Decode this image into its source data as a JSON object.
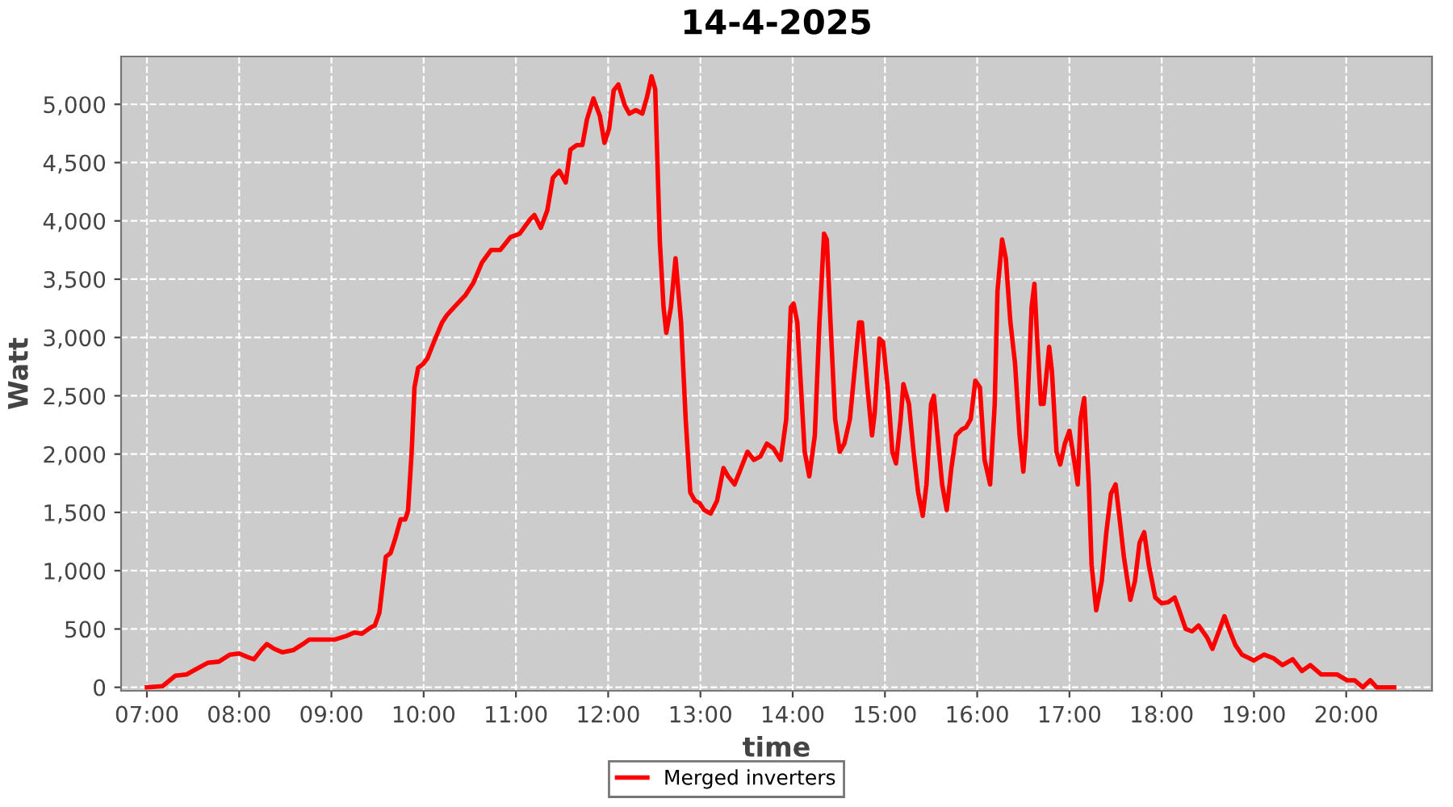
{
  "chart_data": {
    "type": "line",
    "title": "14-4-2025",
    "xlabel": "time",
    "ylabel": "Watt",
    "xlim": [
      6.72,
      20.93
    ],
    "ylim": [
      -30,
      5410
    ],
    "xticks": [
      {
        "value": 7,
        "label": "07:00"
      },
      {
        "value": 8,
        "label": "08:00"
      },
      {
        "value": 9,
        "label": "09:00"
      },
      {
        "value": 10,
        "label": "10:00"
      },
      {
        "value": 11,
        "label": "11:00"
      },
      {
        "value": 12,
        "label": "12:00"
      },
      {
        "value": 13,
        "label": "13:00"
      },
      {
        "value": 14,
        "label": "14:00"
      },
      {
        "value": 15,
        "label": "15:00"
      },
      {
        "value": 16,
        "label": "16:00"
      },
      {
        "value": 17,
        "label": "17:00"
      },
      {
        "value": 18,
        "label": "18:00"
      },
      {
        "value": 19,
        "label": "19:00"
      },
      {
        "value": 20,
        "label": "20:00"
      }
    ],
    "yticks": [
      0,
      500,
      {
        "value": 1000,
        "label": "1,000"
      },
      {
        "value": 1500,
        "label": "1,500"
      },
      {
        "value": 2000,
        "label": "2,000"
      },
      {
        "value": 2500,
        "label": "2,500"
      },
      {
        "value": 3000,
        "label": "3,000"
      },
      {
        "value": 3500,
        "label": "3,500"
      },
      {
        "value": 4000,
        "label": "4,000"
      },
      {
        "value": 4500,
        "label": "4,500"
      },
      {
        "value": 5000,
        "label": "5,000"
      }
    ],
    "grid": true,
    "legend": "bottom",
    "marker": "none",
    "line_style": "solid",
    "series": [
      {
        "name": "Merged inverters",
        "color": "#ff0000",
        "x": [
          7.0,
          7.17,
          7.31,
          7.43,
          7.52,
          7.66,
          7.78,
          7.9,
          8.0,
          8.09,
          8.16,
          8.24,
          8.3,
          8.38,
          8.47,
          8.59,
          8.69,
          8.76,
          8.9,
          9.04,
          9.16,
          9.25,
          9.33,
          9.42,
          9.47,
          9.52,
          9.56,
          9.59,
          9.64,
          9.69,
          9.75,
          9.8,
          9.83,
          9.87,
          9.9,
          9.94,
          9.99,
          10.04,
          10.11,
          10.2,
          10.25,
          10.33,
          10.45,
          10.54,
          10.63,
          10.73,
          10.83,
          10.94,
          11.04,
          11.15,
          11.2,
          11.27,
          11.34,
          11.4,
          11.47,
          11.54,
          11.59,
          11.66,
          11.72,
          11.77,
          11.84,
          11.91,
          11.96,
          12.01,
          12.06,
          12.11,
          12.18,
          12.23,
          12.3,
          12.37,
          12.42,
          12.47,
          12.51,
          12.56,
          12.6,
          12.63,
          12.68,
          12.73,
          12.79,
          12.84,
          12.89,
          12.94,
          12.99,
          13.04,
          13.11,
          13.18,
          13.25,
          13.3,
          13.37,
          13.44,
          13.51,
          13.58,
          13.65,
          13.72,
          13.79,
          13.87,
          13.93,
          13.98,
          14.01,
          14.05,
          14.08,
          14.13,
          14.18,
          14.24,
          14.29,
          14.34,
          14.37,
          14.41,
          14.46,
          14.51,
          14.56,
          14.62,
          14.67,
          14.72,
          14.75,
          14.81,
          14.86,
          14.89,
          14.94,
          14.98,
          15.03,
          15.08,
          15.12,
          15.17,
          15.2,
          15.26,
          15.31,
          15.36,
          15.41,
          15.45,
          15.5,
          15.53,
          15.57,
          15.62,
          15.67,
          15.72,
          15.77,
          15.83,
          15.88,
          15.93,
          15.98,
          16.03,
          16.08,
          16.14,
          16.19,
          16.22,
          16.27,
          16.31,
          16.36,
          16.41,
          16.46,
          16.5,
          16.53,
          16.59,
          16.62,
          16.65,
          16.69,
          16.72,
          16.78,
          16.81,
          16.86,
          16.9,
          16.95,
          17.0,
          17.05,
          17.09,
          17.12,
          17.16,
          17.21,
          17.24,
          17.29,
          17.35,
          17.4,
          17.45,
          17.5,
          17.54,
          17.59,
          17.66,
          17.71,
          17.76,
          17.81,
          17.86,
          17.93,
          18.0,
          18.07,
          18.14,
          18.19,
          18.26,
          18.33,
          18.4,
          18.49,
          18.55,
          18.62,
          18.68,
          18.73,
          18.8,
          18.87,
          19.0,
          19.11,
          19.21,
          19.31,
          19.42,
          19.52,
          19.61,
          19.73,
          19.9,
          20.01,
          20.09,
          20.18,
          20.26,
          20.33,
          20.52
        ],
        "values": [
          0,
          10,
          100,
          110,
          150,
          210,
          220,
          280,
          290,
          260,
          240,
          320,
          370,
          330,
          300,
          320,
          370,
          410,
          410,
          410,
          440,
          470,
          460,
          510,
          530,
          640,
          910,
          1120,
          1150,
          1270,
          1440,
          1440,
          1510,
          2020,
          2570,
          2740,
          2770,
          2820,
          2960,
          3130,
          3190,
          3260,
          3360,
          3470,
          3640,
          3750,
          3750,
          3860,
          3890,
          4010,
          4050,
          3940,
          4090,
          4370,
          4430,
          4330,
          4610,
          4650,
          4650,
          4870,
          5050,
          4900,
          4670,
          4790,
          5120,
          5170,
          4990,
          4920,
          4950,
          4920,
          5060,
          5240,
          5130,
          3820,
          3260,
          3040,
          3260,
          3680,
          3130,
          2300,
          1670,
          1600,
          1580,
          1520,
          1490,
          1600,
          1880,
          1810,
          1740,
          1880,
          2020,
          1950,
          1980,
          2090,
          2050,
          1950,
          2300,
          3260,
          3290,
          3130,
          2710,
          2020,
          1810,
          2160,
          3130,
          3890,
          3840,
          3130,
          2300,
          2020,
          2090,
          2300,
          2710,
          3130,
          3130,
          2570,
          2160,
          2360,
          2990,
          2960,
          2570,
          2020,
          1920,
          2300,
          2600,
          2430,
          2020,
          1670,
          1470,
          1740,
          2430,
          2500,
          2160,
          1740,
          1520,
          1880,
          2160,
          2210,
          2230,
          2300,
          2630,
          2570,
          1950,
          1740,
          2430,
          3400,
          3840,
          3680,
          3130,
          2780,
          2160,
          1850,
          2160,
          3260,
          3460,
          2990,
          2430,
          2430,
          2920,
          2710,
          2020,
          1910,
          2090,
          2200,
          1950,
          1740,
          2300,
          2480,
          1740,
          1050,
          660,
          910,
          1330,
          1660,
          1740,
          1470,
          1120,
          750,
          910,
          1240,
          1330,
          1050,
          770,
          720,
          730,
          770,
          660,
          500,
          480,
          530,
          430,
          330,
          480,
          610,
          500,
          360,
          280,
          230,
          280,
          250,
          190,
          240,
          140,
          190,
          110,
          110,
          60,
          60,
          0,
          60,
          0,
          0
        ]
      }
    ]
  }
}
